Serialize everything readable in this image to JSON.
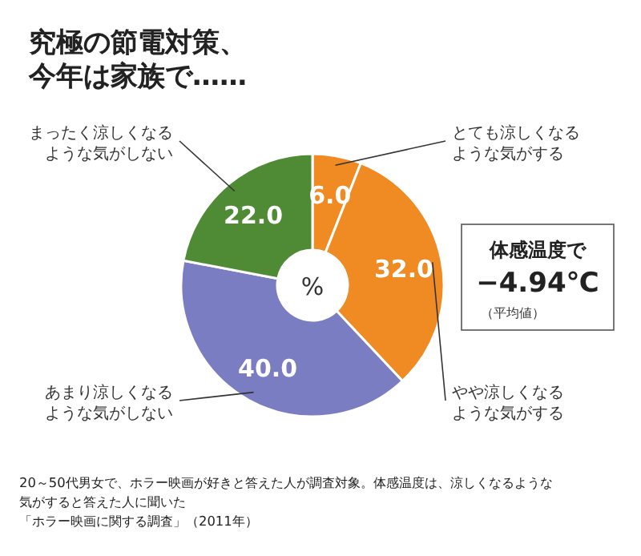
{
  "chart_data": {
    "type": "donut",
    "title": "究極の節電対策、今年は家族で……",
    "categories": [
      "とても涼しくなるような気がする",
      "やや涼しくなるような気がする",
      "あまり涼しくなるような気がしない",
      "まったく涼しくなるような気がしない"
    ],
    "values": [
      6.0,
      32.0,
      40.0,
      22.0
    ],
    "value_labels": [
      "6.0",
      "32.0",
      "40.0",
      "22.0"
    ],
    "colors": [
      "#ef8b22",
      "#ef8b22",
      "#7b7dc2",
      "#4f8a35"
    ],
    "annotations": [
      "%",
      "体感温度で\n−4.94℃\n（平均値）",
      "20～50代男女で、ホラー映画が好きと答えた人が調査対象。体感温度は、涼しくなるような気がすると答えた人に聞いた",
      "「ホラー映画に関する調査」（2011年）"
    ]
  }
}
